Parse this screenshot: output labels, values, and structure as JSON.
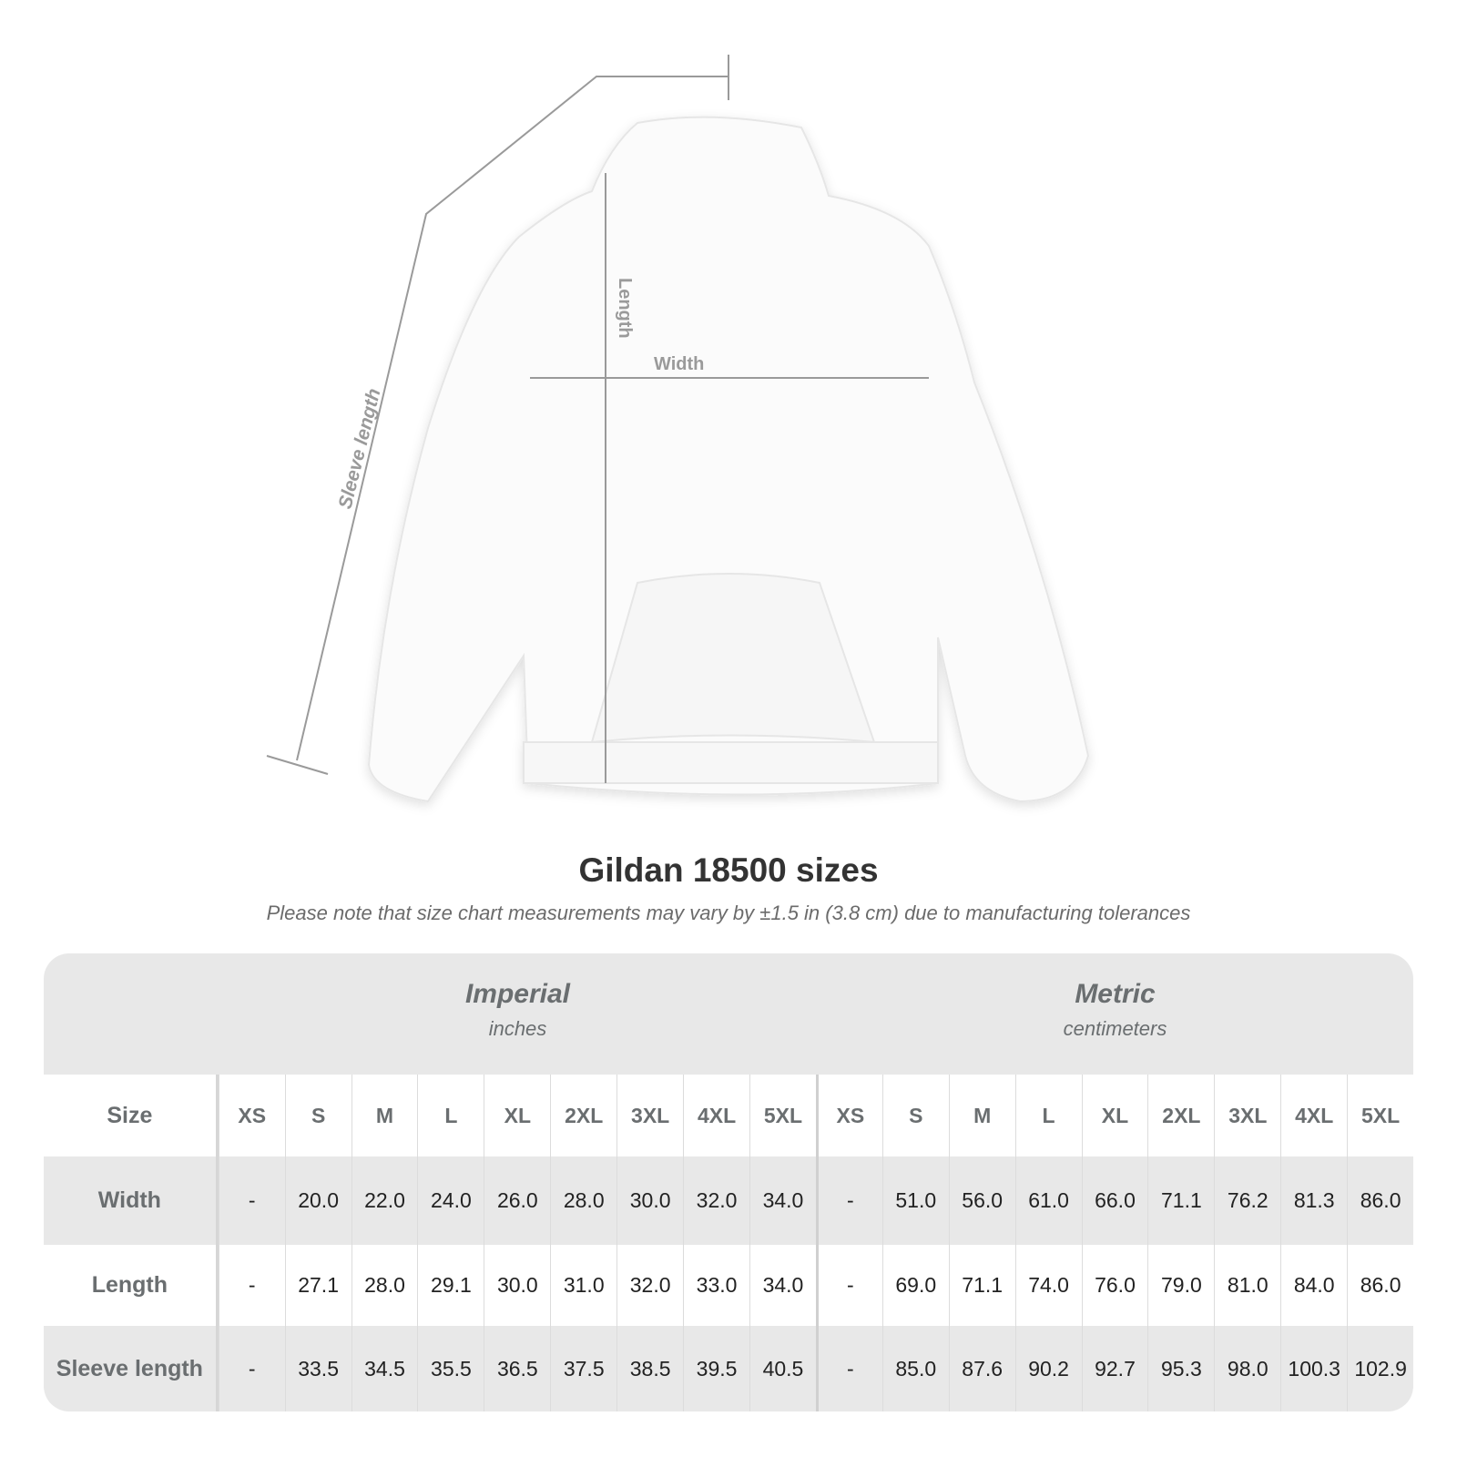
{
  "diagram": {
    "length_label": "Length",
    "width_label": "Width",
    "sleeve_label": "Sleeve length"
  },
  "title": "Gildan 18500 sizes",
  "note": "Please note that size chart measurements may vary by ±1.5 in (3.8 cm) due to manufacturing tolerances",
  "table": {
    "imperial": {
      "heading": "Imperial",
      "unit": "inches"
    },
    "metric": {
      "heading": "Metric",
      "unit": "centimeters"
    },
    "size_label": "Size",
    "sizes": [
      "XS",
      "S",
      "M",
      "L",
      "XL",
      "2XL",
      "3XL",
      "4XL",
      "5XL"
    ],
    "rows": [
      {
        "label": "Width",
        "imperial": [
          "-",
          "20.0",
          "22.0",
          "24.0",
          "26.0",
          "28.0",
          "30.0",
          "32.0",
          "34.0"
        ],
        "metric": [
          "-",
          "51.0",
          "56.0",
          "61.0",
          "66.0",
          "71.1",
          "76.2",
          "81.3",
          "86.0"
        ]
      },
      {
        "label": "Length",
        "imperial": [
          "-",
          "27.1",
          "28.0",
          "29.1",
          "30.0",
          "31.0",
          "32.0",
          "33.0",
          "34.0"
        ],
        "metric": [
          "-",
          "69.0",
          "71.1",
          "74.0",
          "76.0",
          "79.0",
          "81.0",
          "84.0",
          "86.0"
        ]
      },
      {
        "label": "Sleeve length",
        "imperial": [
          "-",
          "33.5",
          "34.5",
          "35.5",
          "36.5",
          "37.5",
          "38.5",
          "39.5",
          "40.5"
        ],
        "metric": [
          "-",
          "85.0",
          "87.6",
          "90.2",
          "92.7",
          "95.3",
          "98.0",
          "100.3",
          "102.9"
        ]
      }
    ]
  }
}
